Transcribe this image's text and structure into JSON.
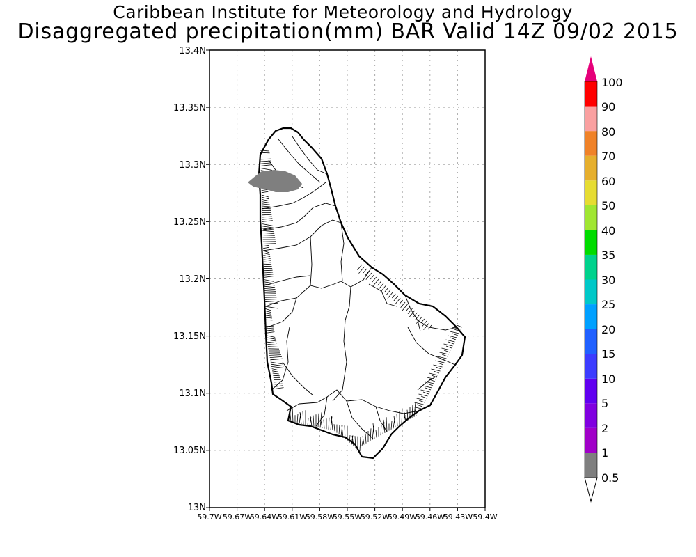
{
  "header": {
    "institute": "Caribbean Institute for Meteorology and Hydrology",
    "product": "Disaggregated precipitation(mm) BAR Valid 14Z 09/02 2015"
  },
  "axes": {
    "lon_labels": [
      "59.7W",
      "59.67W",
      "59.64W",
      "59.61W",
      "59.58W",
      "59.55W",
      "59.52W",
      "59.49W",
      "59.46W",
      "59.43W",
      "59.4W"
    ],
    "lat_labels": [
      "13N",
      "13.05N",
      "13.1N",
      "13.15N",
      "13.2N",
      "13.25N",
      "13.3N",
      "13.35N",
      "13.4N"
    ]
  },
  "colorbar": {
    "levels": [
      "0.5",
      "1",
      "2",
      "5",
      "10",
      "15",
      "20",
      "25",
      "30",
      "35",
      "40",
      "50",
      "60",
      "70",
      "80",
      "90",
      "100"
    ],
    "colors": [
      "#7f7f7f",
      "#a000c8",
      "#8000e0",
      "#6000f0",
      "#3c3cff",
      "#2060ff",
      "#00a0ff",
      "#00c8c8",
      "#00d28c",
      "#00dc00",
      "#a0e632",
      "#e6dc32",
      "#e6af2d",
      "#f08228",
      "#faa0a0",
      "#ff0000",
      "#ff3c3c",
      "#e6007a"
    ]
  },
  "map_data": {
    "region": "Barbados",
    "precip_area_color": "#7f7f7f"
  }
}
